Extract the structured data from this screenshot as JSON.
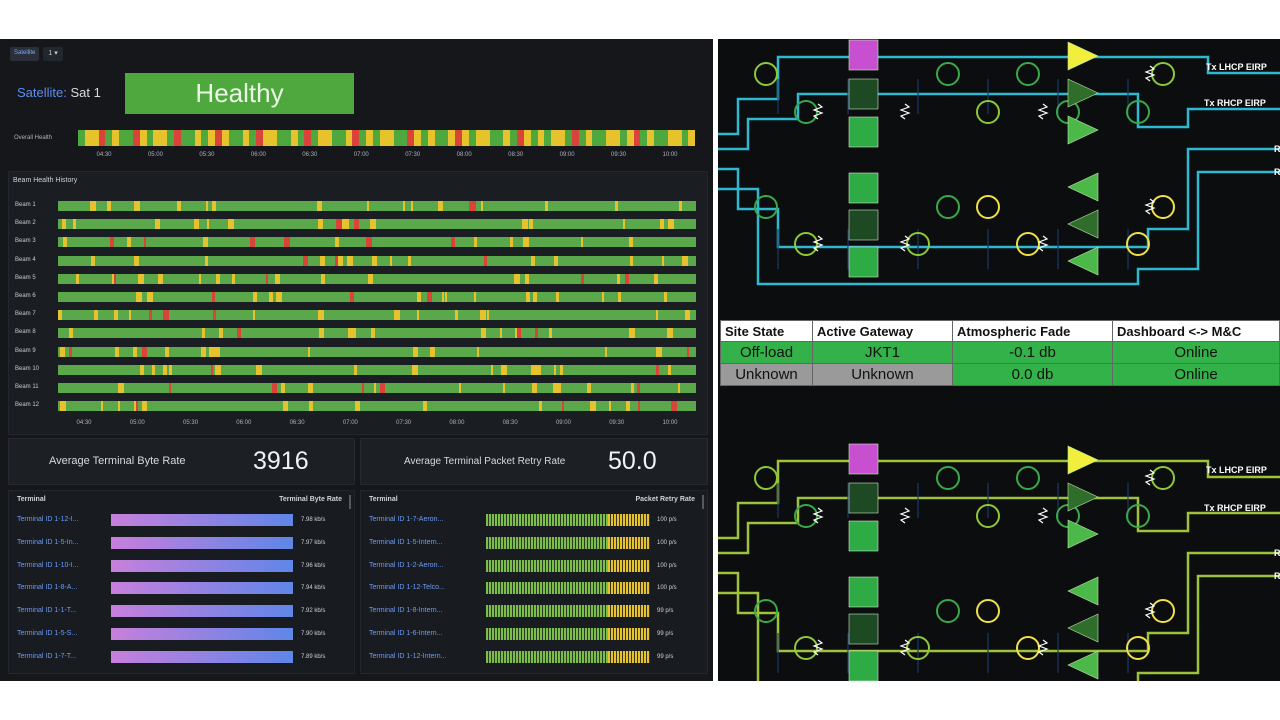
{
  "dashboard": {
    "topbar": {
      "tag": "Satellite",
      "select": "1 ▾"
    },
    "satellite_label": "Satellite:",
    "satellite_name": "Sat 1",
    "health_status": "Healthy",
    "overall_health_label": "Overall Health",
    "time_ticks": [
      "04:30",
      "05:00",
      "05:30",
      "06:00",
      "06:30",
      "07:00",
      "07:30",
      "08:00",
      "08:30",
      "09:00",
      "09:30",
      "10:00"
    ],
    "beam_history_title": "Beam Health History",
    "beams": [
      "Beam 1",
      "Beam 2",
      "Beam 3",
      "Beam 4",
      "Beam 5",
      "Beam 6",
      "Beam 7",
      "Beam 8",
      "Beam 9",
      "Beam 10",
      "Beam 11",
      "Beam 12"
    ],
    "stat_byte_rate": {
      "label": "Average Terminal Byte Rate",
      "value": "3916"
    },
    "stat_retry_rate": {
      "label": "Average Terminal Packet Retry Rate",
      "value": "50.0"
    },
    "byte_table": {
      "col_terminal": "Terminal",
      "col_rate": "Terminal Byte Rate",
      "rows": [
        {
          "name": "Terminal ID 1-12-I...",
          "value": "7.98 kb/s"
        },
        {
          "name": "Terminal ID 1-5-In...",
          "value": "7.97 kb/s"
        },
        {
          "name": "Terminal ID 1-10-I...",
          "value": "7.96 kb/s"
        },
        {
          "name": "Terminal ID 1-8-A...",
          "value": "7.94 kb/s"
        },
        {
          "name": "Terminal ID 1-1-T...",
          "value": "7.92 kb/s"
        },
        {
          "name": "Terminal ID 1-5-S...",
          "value": "7.90 kb/s"
        },
        {
          "name": "Terminal ID 1-7-T...",
          "value": "7.89 kb/s"
        }
      ]
    },
    "retry_table": {
      "col_terminal": "Terminal",
      "col_rate": "Packet Retry Rate",
      "rows": [
        {
          "name": "Terminal ID 1-7-Aeron...",
          "value": "100 p/s"
        },
        {
          "name": "Terminal ID 1-5-Intern...",
          "value": "100 p/s"
        },
        {
          "name": "Terminal ID 1-2-Aeron...",
          "value": "100 p/s"
        },
        {
          "name": "Terminal ID 1-12-Telco...",
          "value": "100 p/s"
        },
        {
          "name": "Terminal ID 1-8-Intern...",
          "value": "99 p/s"
        },
        {
          "name": "Terminal ID 1-6-Intern...",
          "value": "99 p/s"
        },
        {
          "name": "Terminal ID 1-12-Intern...",
          "value": "99 p/s"
        }
      ]
    }
  },
  "diagram": {
    "top": {
      "tx_lhcp": "Tx LHCP EIRP",
      "tx_rhcp": "Tx RHCP EIRP",
      "rx1": "R",
      "rx2": "R"
    },
    "bottom": {
      "tx_lhcp": "Tx LHCP EIRP",
      "tx_rhcp": "Tx RHCP EIRP",
      "rx1": "R",
      "rx2": "R"
    },
    "site_table": {
      "headers": [
        "Site State",
        "Active Gateway",
        "Atmospheric Fade",
        "Dashboard <-> M&C"
      ],
      "rows": [
        [
          "Off-load",
          "JKT1",
          "-0.1 db",
          "Online"
        ],
        [
          "Unknown",
          "Unknown",
          "0.0 db",
          "Online"
        ]
      ]
    }
  },
  "colors": {
    "healthy": "#4ea83d",
    "warn": "#e6c22d",
    "alarm": "#d9433a",
    "cyan_line": "#2fb8d0",
    "olive_line": "#9ec23a"
  }
}
